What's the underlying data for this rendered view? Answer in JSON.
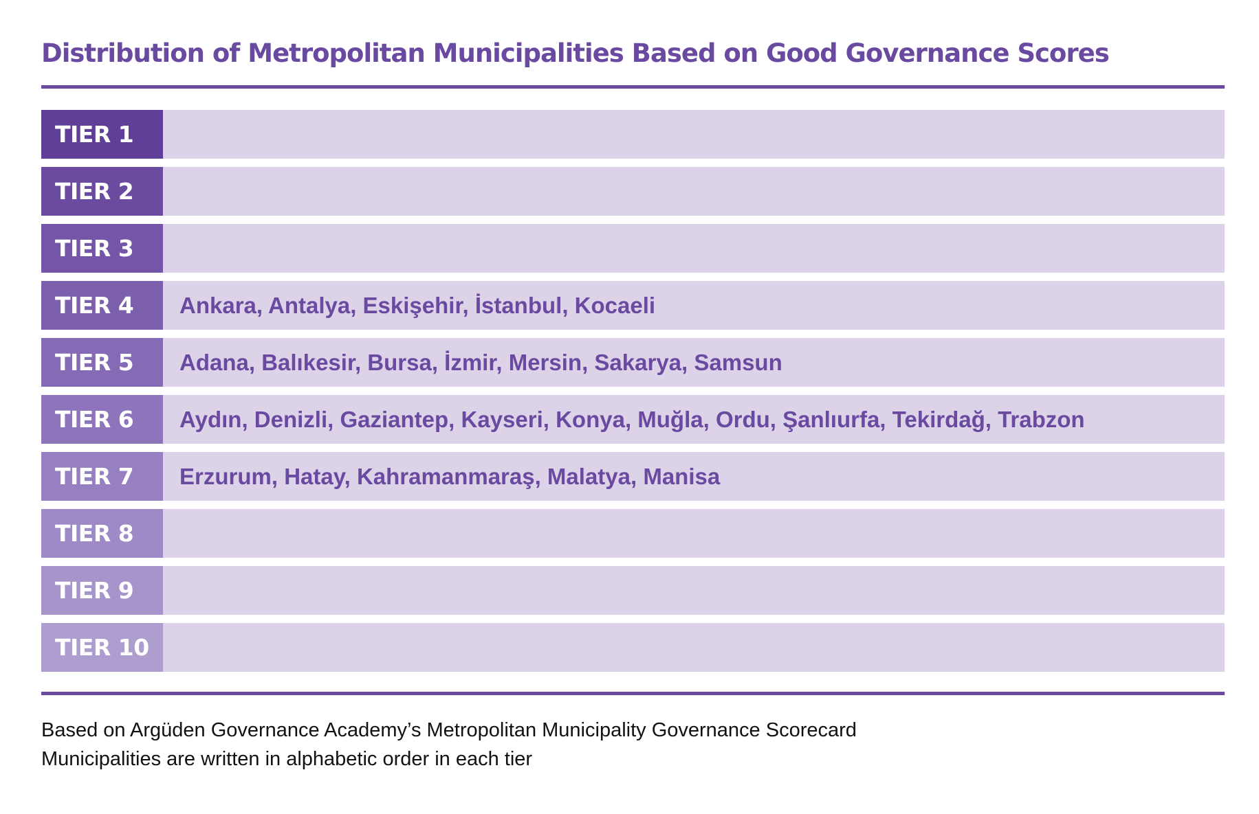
{
  "title": "Distribution of Metropolitan Municipalities Based on Good Governance Scores",
  "colors": {
    "accent": "#6a4aa0",
    "row_background": "#dcd3e9"
  },
  "tiers": [
    {
      "label": "TIER 1",
      "cities": "",
      "label_color": "#5f3f98"
    },
    {
      "label": "TIER 2",
      "cities": "",
      "label_color": "#6a4ba0"
    },
    {
      "label": "TIER 3",
      "cities": "",
      "label_color": "#7455a8"
    },
    {
      "label": "TIER 4",
      "cities": "Ankara, Antalya, Eskişehir, İstanbul, Kocaeli",
      "label_color": "#7c60ae"
    },
    {
      "label": "TIER 5",
      "cities": "Adana, Balıkesir, Bursa, İzmir, Mersin, Sakarya, Samsun",
      "label_color": "#856ab5"
    },
    {
      "label": "TIER 6",
      "cities": "Aydın, Denizli, Gaziantep, Kayseri, Konya, Muğla, Ordu, Şanlıurfa, Tekirdağ, Trabzon",
      "label_color": "#8e75bb"
    },
    {
      "label": "TIER 7",
      "cities": "Erzurum, Hatay, Kahramanmaraş, Malatya, Manisa",
      "label_color": "#9680c1"
    },
    {
      "label": "TIER 8",
      "cities": "",
      "label_color": "#9e8ac6"
    },
    {
      "label": "TIER 9",
      "cities": "",
      "label_color": "#a694cb"
    },
    {
      "label": "TIER 10",
      "cities": "",
      "label_color": "#ae9ed0"
    }
  ],
  "notes": [
    "Based on Argüden Governance Academy’s Metropolitan Municipality Governance Scorecard",
    "Municipalities are written in alphabetic order in each tier"
  ]
}
